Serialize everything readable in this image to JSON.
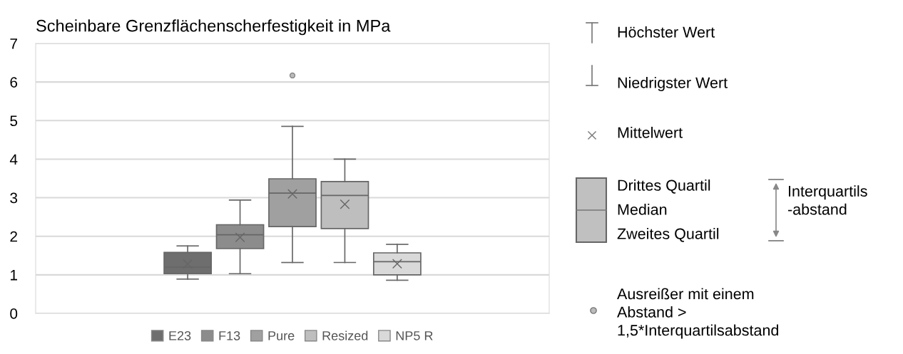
{
  "chart_data": {
    "type": "box",
    "title": "Scheinbare Grenzflächenscherfestigkeit in MPa",
    "categories": [
      null
    ],
    "series": [
      {
        "name": "E23",
        "color": "#6e6e6e",
        "boxes": [
          {
            "low": 0.89,
            "q1": 1.03,
            "median": 1.2,
            "q3": 1.58,
            "high": 1.75,
            "mean": 1.28
          }
        ]
      },
      {
        "name": "F13",
        "color": "#8c8c8c",
        "boxes": [
          {
            "low": 1.03,
            "q1": 1.68,
            "median": 2.04,
            "q3": 2.3,
            "high": 2.94,
            "mean": 1.97
          }
        ]
      },
      {
        "name": "Pure",
        "color": "#a0a0a0",
        "boxes": [
          {
            "low": 1.32,
            "q1": 2.25,
            "median": 3.12,
            "q3": 3.49,
            "high": 4.85,
            "mean": 3.1,
            "outliers": [
              6.17
            ]
          }
        ]
      },
      {
        "name": "Resized",
        "color": "#bebebe",
        "boxes": [
          {
            "low": 1.32,
            "q1": 2.2,
            "median": 3.06,
            "q3": 3.42,
            "high": 4.0,
            "mean": 2.83
          }
        ]
      },
      {
        "name": "NP5 R",
        "color": "#d9d9d9",
        "boxes": [
          {
            "low": 0.86,
            "q1": 1.0,
            "median": 1.34,
            "q3": 1.57,
            "high": 1.79,
            "mean": 1.29
          }
        ]
      }
    ],
    "ylim": [
      0,
      7
    ],
    "yticks": [
      0,
      1,
      2,
      3,
      4,
      5,
      6,
      7
    ],
    "grid": "y",
    "legend": "bottom",
    "tick_labels": "y",
    "marker": "cross",
    "annotations": [
      "Höchster Wert",
      "Niedrigster Wert",
      "Mittelwert",
      "Drittes Quartil",
      "Median",
      "Zweites Quartil",
      "Interquartils\n-abstand",
      "Ausreißer mit einem\nAbstand >\n1,5*Interquartilsabstand"
    ]
  }
}
